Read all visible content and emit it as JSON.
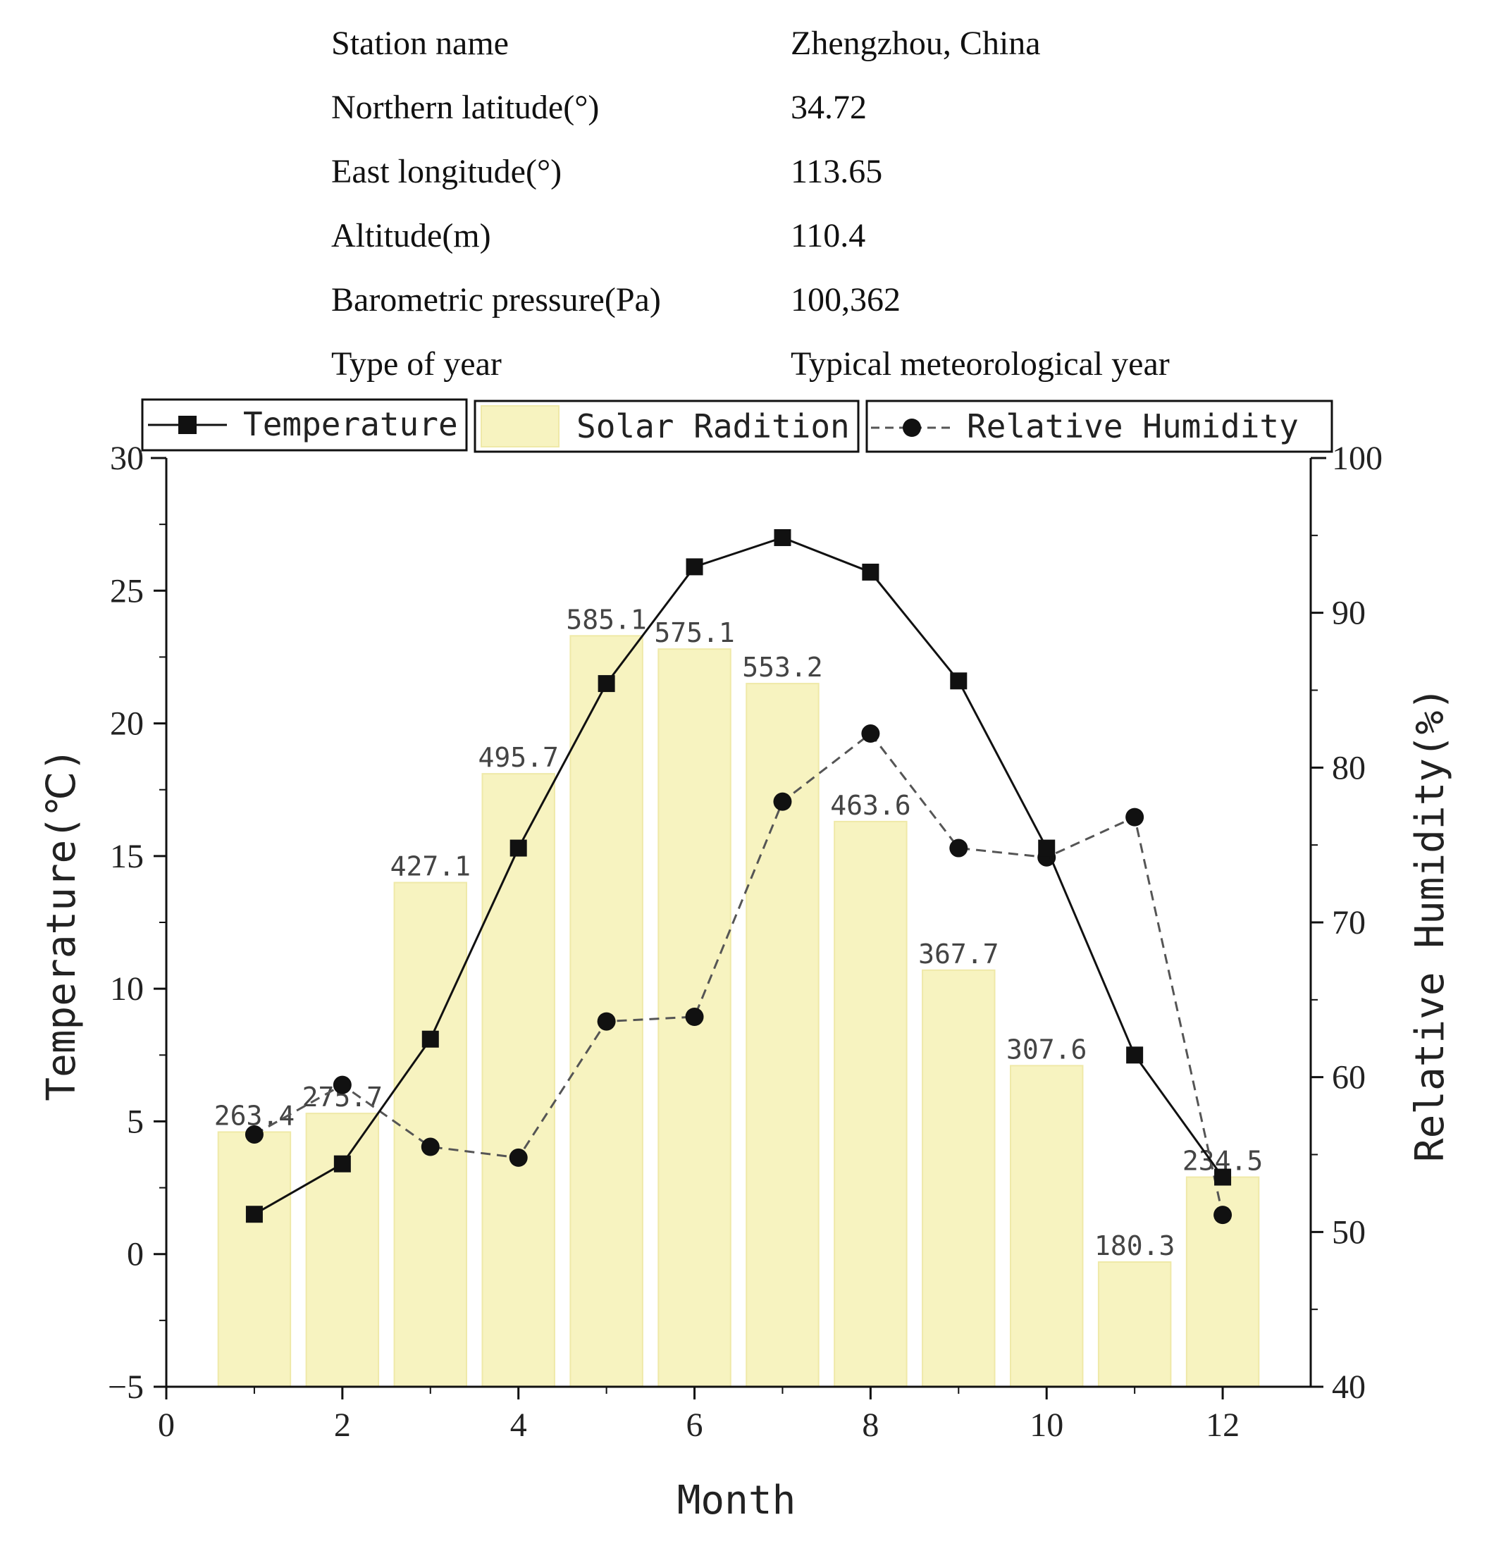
{
  "station_info": [
    {
      "label": "Station name",
      "value": "Zhengzhou, China"
    },
    {
      "label": "Northern latitude(°)",
      "value": "34.72"
    },
    {
      "label": "East longitude(°)",
      "value": "113.65"
    },
    {
      "label": "Altitude(m)",
      "value": "110.4"
    },
    {
      "label": "Barometric pressure(Pa)",
      "value": "100,362"
    },
    {
      "label": "Type of year",
      "value": "Typical meteorological year"
    }
  ],
  "colors": {
    "bar_fill": "#f7f3c0",
    "bar_edge": "#efe9a8",
    "line": "#111111",
    "humidity_line": "#555555",
    "axis": "#111111",
    "text": "#222222"
  },
  "chart_data": {
    "type": "bar+line",
    "xlabel": "Month",
    "ylabel_left": "Temperature(℃)",
    "ylabel_right": "Relative Humidity(%)",
    "xlim": [
      0,
      13
    ],
    "x_ticks": [
      0,
      2,
      4,
      6,
      8,
      10,
      12
    ],
    "ylim_left": [
      -5,
      30
    ],
    "y_ticks_left": [
      -5,
      0,
      5,
      10,
      15,
      20,
      25,
      30
    ],
    "ylim_right": [
      40,
      100
    ],
    "y_ticks_right": [
      40,
      50,
      60,
      70,
      80,
      90,
      100
    ],
    "months": [
      1,
      2,
      3,
      4,
      5,
      6,
      7,
      8,
      9,
      10,
      11,
      12
    ],
    "legend": [
      "Temperature",
      "Solar Radition",
      "Relative Humidity"
    ],
    "series": [
      {
        "name": "Solar Radition",
        "type": "bar",
        "axis": "left",
        "values": [
          263.4,
          275.7,
          427.1,
          495.7,
          585.1,
          575.1,
          553.2,
          463.6,
          367.7,
          307.6,
          180.3,
          234.5
        ],
        "labels": [
          "263.4",
          "275.7",
          "427.1",
          "495.7",
          "585.1",
          "575.1",
          "553.2",
          "463.6",
          "367.7",
          "307.6",
          "180.3",
          "234.5"
        ],
        "bar_heights_left_units": [
          4.6,
          5.3,
          14.0,
          18.1,
          23.3,
          22.8,
          21.5,
          16.3,
          10.7,
          7.1,
          -0.3,
          2.9
        ]
      },
      {
        "name": "Temperature",
        "type": "line",
        "marker": "square",
        "axis": "left",
        "values": [
          1.5,
          3.4,
          8.1,
          15.3,
          21.5,
          25.9,
          27.0,
          25.7,
          21.6,
          15.3,
          7.5,
          2.9
        ]
      },
      {
        "name": "Relative Humidity",
        "type": "line",
        "marker": "circle",
        "dash": true,
        "axis": "right",
        "values": [
          56.3,
          59.5,
          55.5,
          54.8,
          63.6,
          63.9,
          77.8,
          82.2,
          74.8,
          74.2,
          76.8,
          51.1
        ]
      }
    ]
  }
}
